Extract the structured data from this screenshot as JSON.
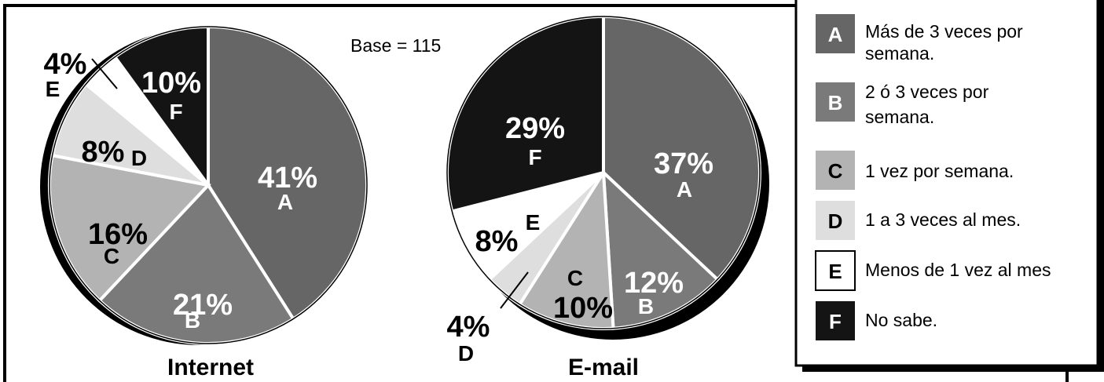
{
  "base_note": "Base = 115",
  "legend": [
    {
      "key": "A",
      "lines": [
        "Más de 3 veces por",
        "semana."
      ],
      "color": "#666666",
      "key_color": "#ffffff"
    },
    {
      "key": "B",
      "lines": [
        "2 ó 3 veces por",
        "semana."
      ],
      "color": "#7a7a7a",
      "key_color": "#ffffff"
    },
    {
      "key": "C",
      "lines": [
        "1 vez por semana."
      ],
      "color": "#b3b3b3",
      "key_color": "#000000"
    },
    {
      "key": "D",
      "lines": [
        "1 a 3 veces al mes."
      ],
      "color": "#dedede",
      "key_color": "#000000"
    },
    {
      "key": "E",
      "lines": [
        "Menos de 1 vez al mes"
      ],
      "color": "#ffffff",
      "key_color": "#000000"
    },
    {
      "key": "F",
      "lines": [
        "No sabe."
      ],
      "color": "#141414",
      "key_color": "#ffffff"
    }
  ],
  "chart_data": [
    {
      "type": "pie",
      "title": "Internet",
      "slices": [
        {
          "key": "A",
          "value": 41,
          "label": "41%"
        },
        {
          "key": "B",
          "value": 21,
          "label": "21%"
        },
        {
          "key": "C",
          "value": 16,
          "label": "16%"
        },
        {
          "key": "D",
          "value": 8,
          "label": "8%"
        },
        {
          "key": "E",
          "value": 4,
          "label": "4%"
        },
        {
          "key": "F",
          "value": 10,
          "label": "10%"
        }
      ]
    },
    {
      "type": "pie",
      "title": "E-mail",
      "slices": [
        {
          "key": "A",
          "value": 37,
          "label": "37%"
        },
        {
          "key": "B",
          "value": 12,
          "label": "12%"
        },
        {
          "key": "C",
          "value": 10,
          "label": "10%"
        },
        {
          "key": "D",
          "value": 4,
          "label": "4%"
        },
        {
          "key": "E",
          "value": 8,
          "label": "8%"
        },
        {
          "key": "F",
          "value": 29,
          "label": "29%"
        }
      ]
    }
  ]
}
